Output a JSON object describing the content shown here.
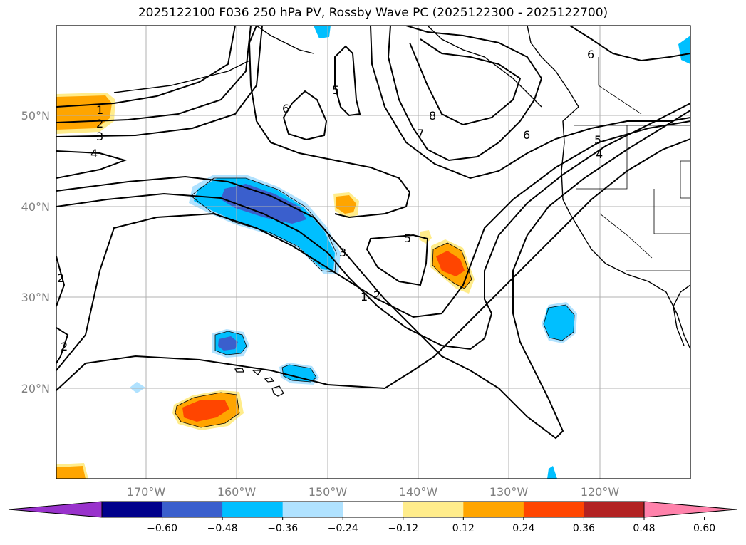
{
  "title": "2025122100 F036 250 hPa PV, Rossby Wave PC (2025122300 - 2025122700)",
  "map": {
    "lat_labels": [
      "50°N",
      "40°N",
      "30°N",
      "20°N"
    ],
    "lon_labels": [
      "170°W",
      "160°W",
      "150°W",
      "140°W",
      "130°W",
      "120°W"
    ],
    "contour_labels": [
      "1",
      "2",
      "3",
      "4",
      "5",
      "6",
      "7",
      "8"
    ]
  },
  "colorbar": {
    "ticks": [
      "−0.60",
      "−0.48",
      "−0.36",
      "−0.24",
      "−0.12",
      "0.12",
      "0.24",
      "0.36",
      "0.48",
      "0.60"
    ],
    "colors": [
      "#9932cc",
      "#00008b",
      "#3a5fcd",
      "#00bfff",
      "#b0e2ff",
      "#ffffff",
      "#ffec8b",
      "#ffa500",
      "#ff4500",
      "#b22222",
      "#ff82ab"
    ]
  }
}
